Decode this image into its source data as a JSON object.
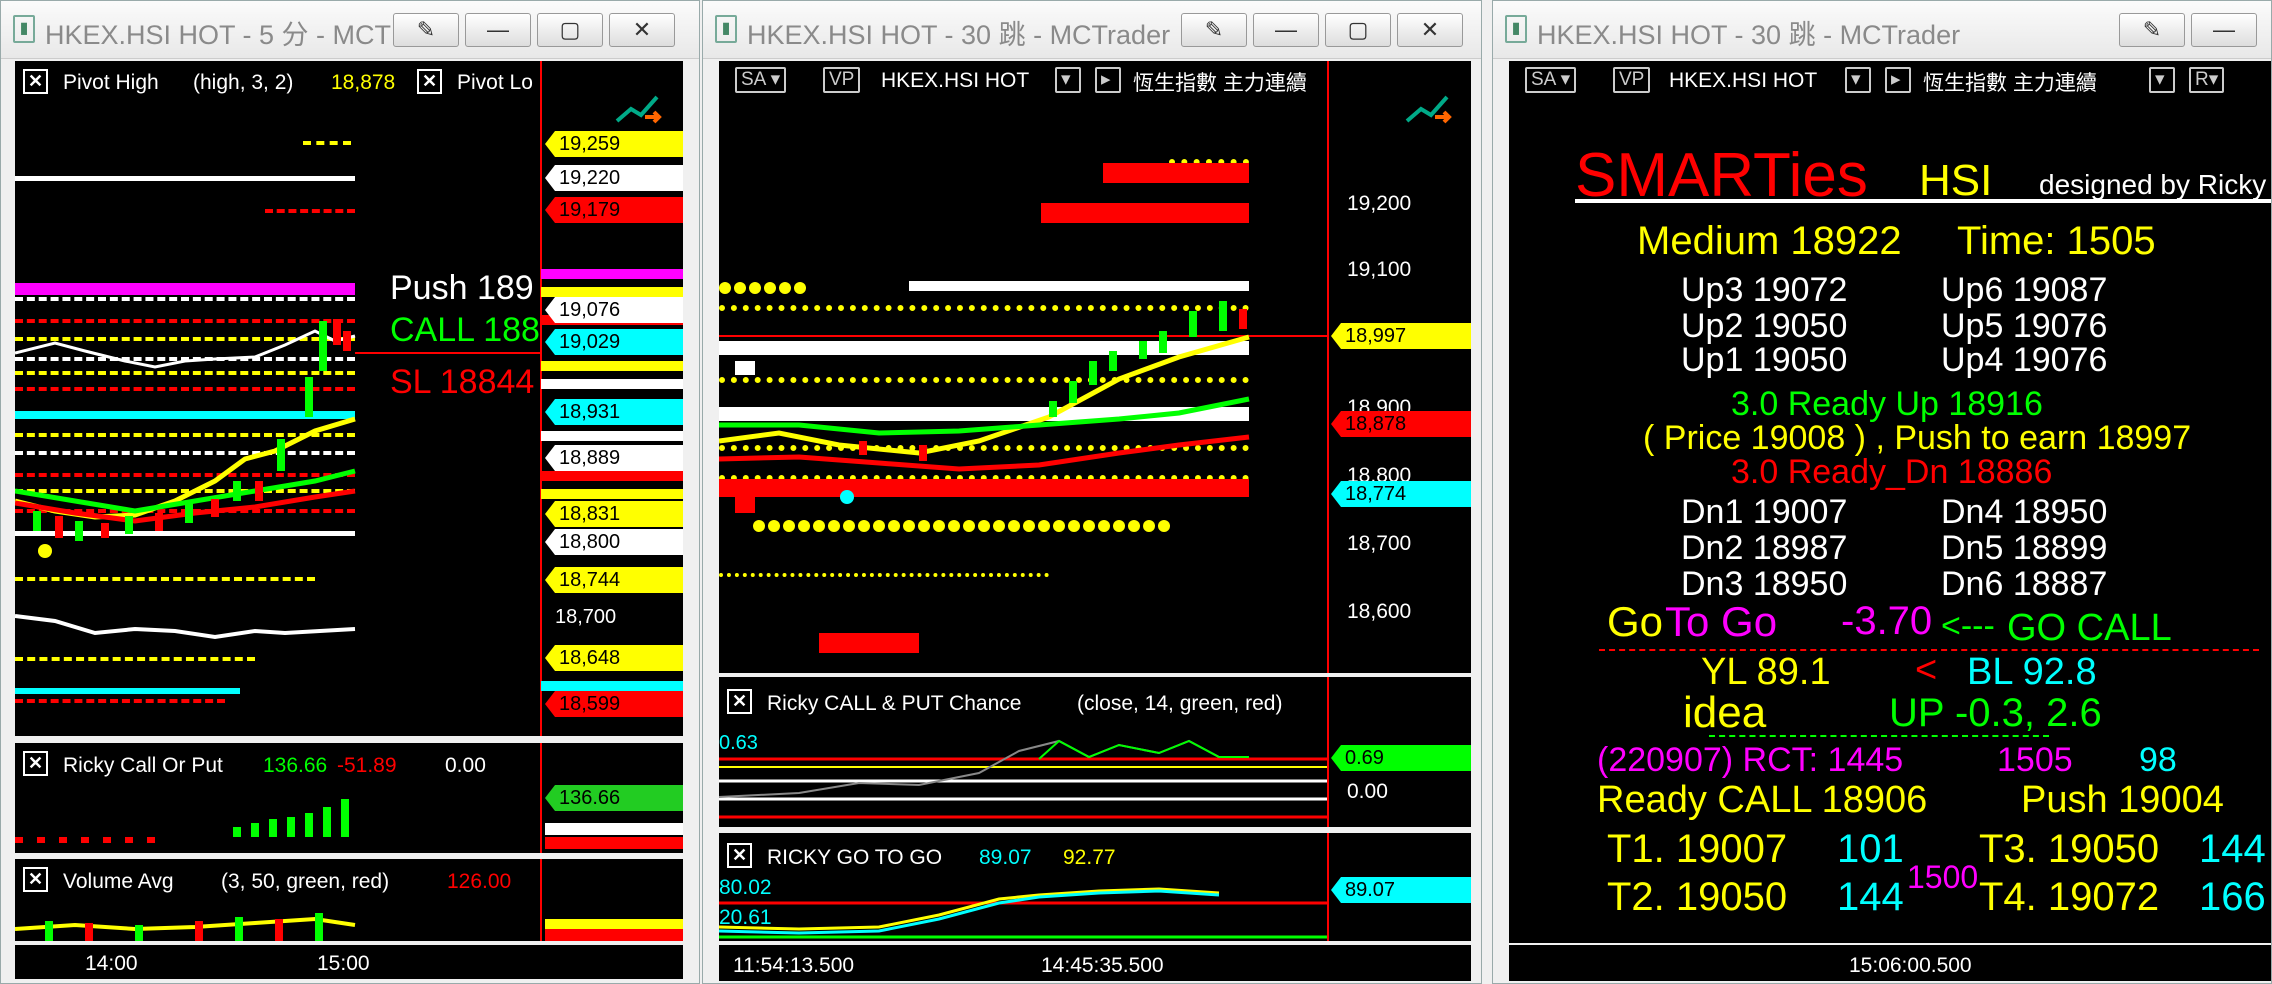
{
  "windows": [
    {
      "title": "HKEX.HSI HOT - 5 分 - MCT",
      "buttons": [
        "edit",
        "minimize",
        "maximize",
        "close"
      ]
    },
    {
      "title": "HKEX.HSI HOT - 30 跳 - MCTrader",
      "buttons": [
        "edit",
        "minimize",
        "maximize",
        "close"
      ]
    },
    {
      "title": "HKEX.HSI HOT - 30 跳 - MCTrader",
      "buttons": [
        "edit",
        "minimize"
      ]
    }
  ],
  "w1": {
    "pivot_label": "Pivot High",
    "pivot_params": "(high,  3,  2)",
    "pivot_value": "18,878",
    "pivot_low": "Pivot Lo",
    "push": "Push  189",
    "call": "CALL 188",
    "sl": "SL 18844",
    "price_tags": [
      {
        "v": "19,259",
        "bg": "#ffff00",
        "fg": "#000"
      },
      {
        "v": "19,220",
        "bg": "#ffffff",
        "fg": "#000"
      },
      {
        "v": "19,179",
        "bg": "#ff0000",
        "fg": "#000"
      },
      {
        "v": "19,076",
        "bg": "#ffffff",
        "fg": "#000"
      },
      {
        "v": "19,029",
        "bg": "#00ffff",
        "fg": "#000"
      },
      {
        "v": "18,931",
        "bg": "#00ffff",
        "fg": "#000"
      },
      {
        "v": "18,889",
        "bg": "#ffffff",
        "fg": "#000"
      },
      {
        "v": "18,831",
        "bg": "#ffff00",
        "fg": "#000"
      },
      {
        "v": "18,800",
        "bg": "#ffffff",
        "fg": "#000"
      },
      {
        "v": "18,744",
        "bg": "#ffff00",
        "fg": "#000"
      },
      {
        "v": "18,700",
        "bg": "",
        "fg": "#fff"
      },
      {
        "v": "18,648",
        "bg": "#ffff00",
        "fg": "#000"
      },
      {
        "v": "18,599",
        "bg": "#ff0000",
        "fg": "#000"
      }
    ],
    "callput_label": "Ricky Call Or Put",
    "callput_v1": "136.66",
    "callput_v2": "-51.89",
    "callput_v3": "0.00",
    "callput_tag": "136.66",
    "volume_label": "Volume Avg",
    "volume_params": "(3,  50,  green,  red)",
    "volume_value": "126.00",
    "time_axis": [
      "14:00",
      "15:00"
    ]
  },
  "w2": {
    "chip_sa": "SA",
    "chip_vp": "VP",
    "symbol": "HKEX.HSI HOT",
    "name": "恆生指數 主力連續",
    "axis": [
      "19,200",
      "19,100",
      "18,900",
      "18,800",
      "18,700",
      "18,600"
    ],
    "tags": [
      {
        "v": "18,997",
        "bg": "#ffff00",
        "fg": "#000"
      },
      {
        "v": "18,878",
        "bg": "#ff0000",
        "fg": "#000"
      },
      {
        "v": "18,774",
        "bg": "#00ffff",
        "fg": "#000"
      }
    ],
    "chance_label": "Ricky CALL & PUT Chance",
    "chance_params": "(close,  14,  green,  red)",
    "chance_tag": "0.69",
    "chance_zero": "0.00",
    "chance_left": "0.63",
    "goto_label": "RICKY GO TO GO",
    "goto_v1": "89.07",
    "goto_v2": "92.77",
    "goto_left1": "80.02",
    "goto_left2": "20.61",
    "goto_tag": "89.07",
    "time_axis": [
      "11:54:13.500",
      "14:45:35.500"
    ]
  },
  "w3": {
    "chip_sa": "SA",
    "chip_vp": "VP",
    "symbol": "HKEX.HSI HOT",
    "name": "恆生指數 主力連續",
    "chip_r": "R",
    "brand": "SMARTies",
    "brand_hsi": "HSI",
    "designed": "designed by Ricky",
    "medium": "Medium 18922",
    "time": "Time:  1505",
    "ups": [
      [
        "Up3  19072",
        "Up6  19087"
      ],
      [
        "Up2  19050",
        "Up5  19076"
      ],
      [
        "Up1  19050",
        "Up4  19076"
      ]
    ],
    "ready_up": "3.0 Ready Up   18916",
    "price_line": "( Price 19008 ) ,  Push to earn  18997",
    "ready_dn": "3.0 Ready_Dn  18886",
    "dns": [
      [
        "Dn1  19007",
        "Dn4  18950"
      ],
      [
        "Dn2  18987",
        "Dn5  18899"
      ],
      [
        "Dn3  18950",
        "Dn6  18887"
      ]
    ],
    "goto_go": "Go",
    "goto_to": "To Go",
    "goto_val": "-3.70",
    "goto_arrow": "<---",
    "go_call": "GO CALL",
    "yl": "YL  89.1",
    "lt": "<",
    "bl": "BL  92.8",
    "idea": "idea",
    "up": "UP   -0.3,   2.6",
    "rct": "(220907) RCT:  1445",
    "rct_b": "1505",
    "rct_c": "98",
    "ready_call": "Ready CALL  18906",
    "push": "Push  19004",
    "t1": "T1.  19007",
    "t1b": "101",
    "t3": "T3. 19050",
    "t3b": "144",
    "t2": "T2.  19050",
    "t2b": "144",
    "mid": "1500",
    "t4": "T4. 19072",
    "t4b": "166",
    "time_axis": "15:06:00.500"
  },
  "colors": {
    "bg": "#000000",
    "red": "#ff0000",
    "yellow": "#ffff00",
    "green": "#00ff00",
    "cyan": "#00ffff",
    "magenta": "#ff00ff",
    "white": "#ffffff"
  }
}
